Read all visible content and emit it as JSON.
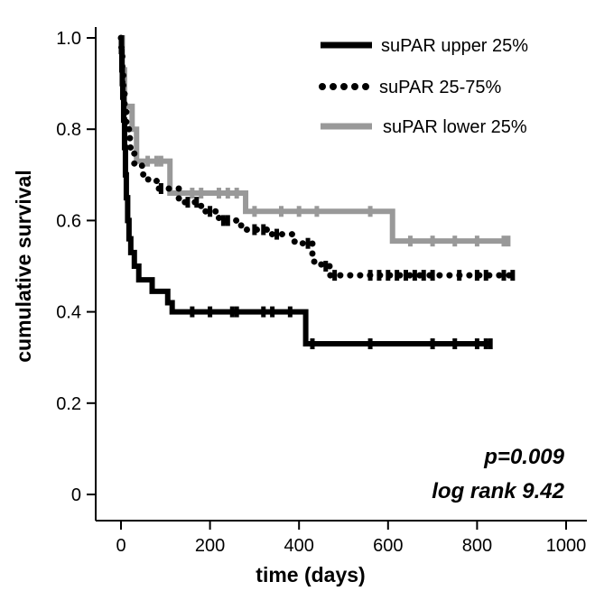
{
  "chart_data": {
    "type": "line",
    "subtype": "kaplan-meier step",
    "title": "",
    "xlabel": "time (days)",
    "ylabel": "cumulative survival",
    "xlim": [
      -50,
      1000
    ],
    "ylim": [
      -0.03,
      1.03
    ],
    "x_ticks": [
      0,
      200,
      400,
      600,
      800,
      1000
    ],
    "x_tick_labels": [
      "0",
      "200",
      "400",
      "600",
      "800",
      "1000"
    ],
    "y_ticks": [
      0,
      0.2,
      0.4,
      0.6,
      0.8,
      1.0
    ],
    "y_tick_labels": [
      "0",
      "0.2",
      "0.4",
      "0.6",
      "0.8",
      "1.0"
    ],
    "grid": false,
    "legend_position": "top-right",
    "annotations": [
      "p=0.009",
      "log rank 9.42"
    ],
    "series": [
      {
        "name": "suPAR upper 25%",
        "style": "solid",
        "color": "#000000",
        "steps": [
          [
            0,
            1.0
          ],
          [
            1,
            0.97
          ],
          [
            2,
            0.93
          ],
          [
            3,
            0.9
          ],
          [
            4,
            0.87
          ],
          [
            6,
            0.82
          ],
          [
            8,
            0.76
          ],
          [
            10,
            0.7
          ],
          [
            12,
            0.65
          ],
          [
            15,
            0.6
          ],
          [
            18,
            0.56
          ],
          [
            22,
            0.53
          ],
          [
            30,
            0.5
          ],
          [
            40,
            0.47
          ],
          [
            70,
            0.445
          ],
          [
            105,
            0.42
          ],
          [
            115,
            0.4
          ],
          [
            400,
            0.4
          ],
          [
            415,
            0.33
          ],
          [
            830,
            0.33
          ]
        ],
        "censored_x": [
          160,
          200,
          250,
          260,
          320,
          340,
          380,
          430,
          560,
          700,
          750,
          800,
          820,
          830
        ]
      },
      {
        "name": "suPAR 25-75%",
        "style": "dotted",
        "color": "#000000",
        "steps": [
          [
            0,
            1.0
          ],
          [
            1,
            0.96
          ],
          [
            3,
            0.92
          ],
          [
            5,
            0.88
          ],
          [
            8,
            0.84
          ],
          [
            12,
            0.8
          ],
          [
            20,
            0.76
          ],
          [
            30,
            0.72
          ],
          [
            50,
            0.69
          ],
          [
            80,
            0.67
          ],
          [
            130,
            0.64
          ],
          [
            180,
            0.62
          ],
          [
            220,
            0.6
          ],
          [
            270,
            0.58
          ],
          [
            330,
            0.57
          ],
          [
            390,
            0.55
          ],
          [
            430,
            0.51
          ],
          [
            450,
            0.5
          ],
          [
            470,
            0.48
          ],
          [
            880,
            0.48
          ]
        ],
        "censored_x": [
          90,
          150,
          170,
          200,
          230,
          240,
          300,
          320,
          350,
          420,
          460,
          480,
          560,
          580,
          600,
          620,
          640,
          660,
          680,
          700,
          760,
          800,
          820,
          860,
          880
        ]
      },
      {
        "name": "suPAR lower 25%",
        "style": "solid",
        "color": "#999999",
        "steps": [
          [
            0,
            1.0
          ],
          [
            3,
            0.93
          ],
          [
            8,
            0.85
          ],
          [
            25,
            0.8
          ],
          [
            35,
            0.73
          ],
          [
            110,
            0.66
          ],
          [
            280,
            0.62
          ],
          [
            610,
            0.555
          ],
          [
            870,
            0.555
          ]
        ],
        "censored_x": [
          60,
          80,
          90,
          160,
          180,
          220,
          240,
          260,
          300,
          360,
          400,
          440,
          560,
          650,
          700,
          750,
          800,
          860,
          870
        ]
      }
    ]
  }
}
